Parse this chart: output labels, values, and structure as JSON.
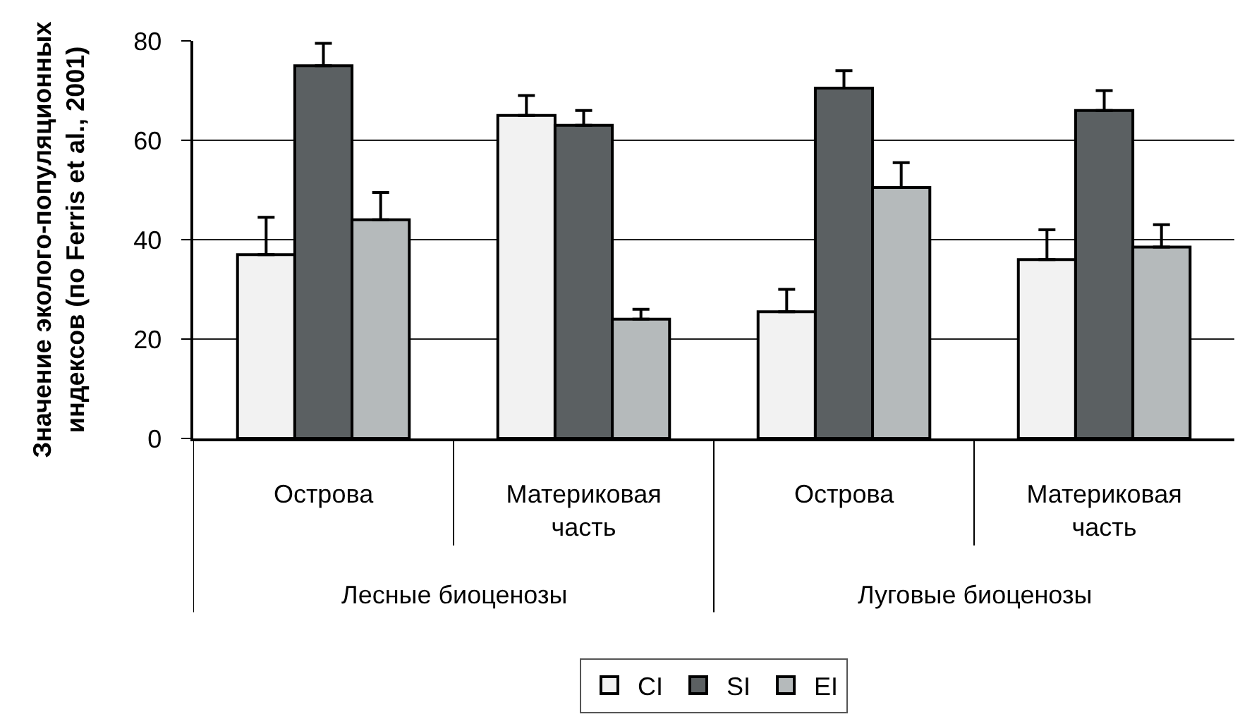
{
  "chart_data": {
    "type": "bar",
    "ylabel": "Значение эколого-популяционных\nиндексов (по Ferris et al., 2001)",
    "categories": [
      "Острова",
      "Материковая\nчасть",
      "Острова",
      "Материковая\nчасть"
    ],
    "annotations": [
      "Лесные биоценозы",
      "Луговые биоценозы"
    ],
    "series": [
      {
        "name": "CI",
        "color": "#f2f2f2",
        "values": [
          37,
          65,
          25.5,
          36
        ],
        "errors": [
          [
            37,
            44.5
          ],
          [
            65,
            69
          ],
          [
            25.5,
            30
          ],
          [
            36,
            42
          ]
        ]
      },
      {
        "name": "SI",
        "color": "#5b6062",
        "values": [
          75,
          63,
          70.5,
          66
        ],
        "errors": [
          [
            75,
            79.5
          ],
          [
            63,
            66
          ],
          [
            70.5,
            74
          ],
          [
            66,
            70
          ]
        ]
      },
      {
        "name": "EI",
        "color": "#b5babb",
        "values": [
          44,
          24,
          50.5,
          38.5
        ],
        "errors": [
          [
            44,
            49.5
          ],
          [
            24,
            26
          ],
          [
            50.5,
            55.5
          ],
          [
            38.5,
            43
          ]
        ]
      }
    ],
    "ylim": [
      0,
      80
    ],
    "yticks": [
      0,
      20,
      40,
      60,
      80
    ],
    "grid": "y",
    "legend": "bottom"
  }
}
